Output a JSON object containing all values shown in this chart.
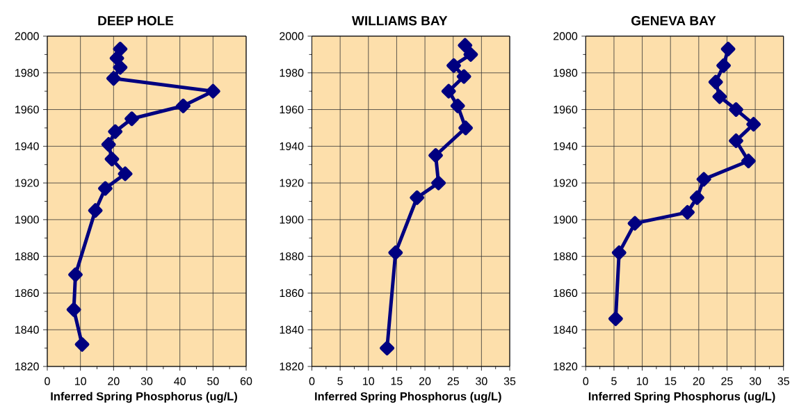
{
  "chart_data": [
    {
      "type": "line",
      "title": "DEEP HOLE",
      "xlabel": "Inferred Spring Phosphorus (ug/L)",
      "color": "#000080",
      "marker": "diamond",
      "line_style": "solid",
      "grid": true,
      "x": [
        22,
        21,
        22,
        20,
        50,
        41,
        25.5,
        20.5,
        18.5,
        19.5,
        23.5,
        17.5,
        14.5,
        8.5,
        8,
        10.5
      ],
      "values": [
        1993,
        1988,
        1983,
        1977,
        1970,
        1962,
        1955,
        1948,
        1941,
        1933,
        1925,
        1917,
        1905,
        1870,
        1851,
        1832
      ],
      "xlim": [
        0,
        60
      ],
      "xticks": [
        0,
        10,
        20,
        30,
        40,
        50,
        60
      ],
      "ylim": [
        1820,
        2000
      ],
      "yticks": [
        1820,
        1840,
        1860,
        1880,
        1900,
        1920,
        1940,
        1960,
        1980,
        2000
      ]
    },
    {
      "type": "line",
      "title": "WILLIAMS BAY",
      "xlabel": "Inferred Spring Phosphorus (ug/L)",
      "color": "#000080",
      "marker": "diamond",
      "line_style": "solid",
      "grid": true,
      "x": [
        27.1,
        28.1,
        25.1,
        26.9,
        24.2,
        25.8,
        27.2,
        21.9,
        22.4,
        18.6,
        14.8,
        13.3
      ],
      "values": [
        1995,
        1990,
        1984,
        1978,
        1970,
        1962,
        1950,
        1935,
        1920,
        1912,
        1882,
        1830
      ],
      "xlim": [
        0,
        35
      ],
      "xticks": [
        0,
        5,
        10,
        15,
        20,
        25,
        30,
        35
      ],
      "ylim": [
        1820,
        2000
      ],
      "yticks": [
        1820,
        1840,
        1860,
        1880,
        1900,
        1920,
        1940,
        1960,
        1980,
        2000
      ]
    },
    {
      "type": "line",
      "title": "GENEVA BAY",
      "xlabel": "Inferred Spring Phosphorus (ug/L)",
      "color": "#000080",
      "marker": "diamond",
      "line_style": "solid",
      "grid": true,
      "x": [
        25.2,
        24.4,
        23.0,
        23.7,
        26.6,
        29.7,
        26.6,
        28.8,
        20.9,
        19.7,
        18.0,
        8.7,
        5.9,
        5.3
      ],
      "values": [
        1993,
        1984,
        1975,
        1967,
        1960,
        1952,
        1943,
        1932,
        1922,
        1912,
        1904,
        1898,
        1882,
        1846
      ],
      "xlim": [
        0,
        35
      ],
      "xticks": [
        0,
        5,
        10,
        15,
        20,
        25,
        30,
        35
      ],
      "ylim": [
        1820,
        2000
      ],
      "yticks": [
        1820,
        1840,
        1860,
        1880,
        1900,
        1920,
        1940,
        1960,
        1980,
        2000
      ]
    }
  ]
}
